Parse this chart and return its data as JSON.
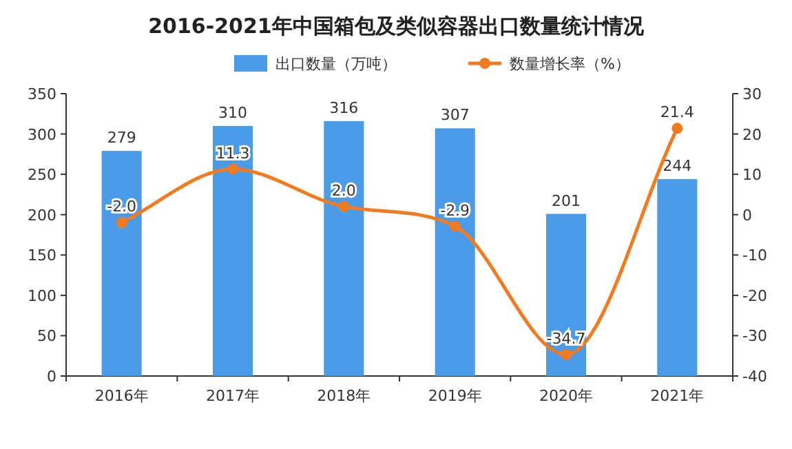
{
  "chart_data": {
    "type": "bar",
    "title": "2016-2021年中国箱包及类似容器出口数量统计情况",
    "categories": [
      "2016年",
      "2017年",
      "2018年",
      "2019年",
      "2020年",
      "2021年"
    ],
    "series": [
      {
        "name": "出口数量（万吨）",
        "color": "#4a9be8",
        "values": [
          279,
          310,
          316,
          307,
          201,
          244
        ]
      },
      {
        "name": "数量增长率（%）",
        "type": "line",
        "axis": "y2",
        "color": "#f47a20",
        "values": [
          -2.0,
          11.3,
          2.0,
          -2.9,
          -34.7,
          21.4
        ],
        "value_labels": [
          "-2.0",
          "11.3",
          "2.0",
          "-2.9",
          "-34.7",
          "21.4"
        ]
      }
    ],
    "ylim": [
      0,
      350
    ],
    "yticks": [
      0,
      50,
      100,
      150,
      200,
      250,
      300,
      350
    ],
    "y2lim": [
      -40,
      30
    ],
    "y2ticks": [
      -40,
      -30,
      -20,
      -10,
      0,
      10,
      20,
      30
    ],
    "data_labels": true,
    "legend": "top",
    "marker": "circle",
    "grid": false
  }
}
